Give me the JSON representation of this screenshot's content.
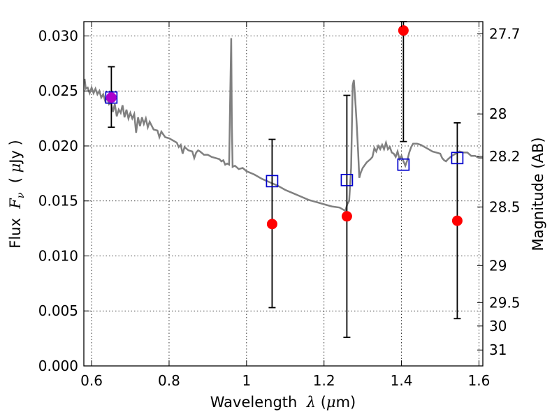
{
  "chart_data": {
    "type": "scatter",
    "xlabel": "Wavelength",
    "xlabel_symbol": "λ",
    "xlabel_unit_prefix": "(",
    "xlabel_unit": "μm)",
    "ylabel": "Flux",
    "ylabel_symbol": "F",
    "ylabel_subscript": "ν",
    "ylabel_unit": "( μJy )",
    "y2label": "Magnitude (AB)",
    "xlim": [
      0.58,
      1.61
    ],
    "ylim": [
      0.0,
      0.0313
    ],
    "grid": true,
    "x_ticks": [
      {
        "value": 0.6,
        "label": "0.6"
      },
      {
        "value": 0.8,
        "label": "0.8"
      },
      {
        "value": 1.0,
        "label": "1"
      },
      {
        "value": 1.2,
        "label": "1.2"
      },
      {
        "value": 1.4,
        "label": "1.4"
      },
      {
        "value": 1.6,
        "label": "1.6"
      }
    ],
    "y_ticks": [
      {
        "value": 0.0,
        "label": "0.000"
      },
      {
        "value": 0.005,
        "label": "0.005"
      },
      {
        "value": 0.01,
        "label": "0.010"
      },
      {
        "value": 0.015,
        "label": "0.015"
      },
      {
        "value": 0.02,
        "label": "0.020"
      },
      {
        "value": 0.025,
        "label": "0.025"
      },
      {
        "value": 0.03,
        "label": "0.030"
      }
    ],
    "y2_ticks": [
      {
        "value": 27.7,
        "label": "27.7"
      },
      {
        "value": 28.0,
        "label": "28"
      },
      {
        "value": 28.2,
        "label": "28.2"
      },
      {
        "value": 28.5,
        "label": "28.5"
      },
      {
        "value": 29.0,
        "label": "29"
      },
      {
        "value": 29.5,
        "label": "29.5"
      },
      {
        "value": 30.0,
        "label": "30"
      },
      {
        "value": 31.0,
        "label": "31"
      }
    ],
    "y2_zero_point": 23.9,
    "series": [
      {
        "kind": "line",
        "color": "#808080",
        "points": [
          [
            0.582,
            0.0261
          ],
          [
            0.585,
            0.0252
          ],
          [
            0.59,
            0.0253
          ],
          [
            0.595,
            0.0248
          ],
          [
            0.6,
            0.0253
          ],
          [
            0.605,
            0.0248
          ],
          [
            0.61,
            0.0252
          ],
          [
            0.615,
            0.0247
          ],
          [
            0.62,
            0.025
          ],
          [
            0.625,
            0.0244
          ],
          [
            0.63,
            0.0247
          ],
          [
            0.635,
            0.0241
          ],
          [
            0.64,
            0.0244
          ],
          [
            0.645,
            0.0238
          ],
          [
            0.65,
            0.024
          ],
          [
            0.655,
            0.0231
          ],
          [
            0.66,
            0.0238
          ],
          [
            0.665,
            0.0227
          ],
          [
            0.67,
            0.0233
          ],
          [
            0.675,
            0.023
          ],
          [
            0.68,
            0.0237
          ],
          [
            0.685,
            0.0226
          ],
          [
            0.69,
            0.0233
          ],
          [
            0.695,
            0.0225
          ],
          [
            0.7,
            0.023
          ],
          [
            0.705,
            0.0225
          ],
          [
            0.71,
            0.0229
          ],
          [
            0.715,
            0.0212
          ],
          [
            0.72,
            0.0226
          ],
          [
            0.725,
            0.0218
          ],
          [
            0.73,
            0.0226
          ],
          [
            0.735,
            0.022
          ],
          [
            0.74,
            0.0225
          ],
          [
            0.745,
            0.0217
          ],
          [
            0.75,
            0.0222
          ],
          [
            0.76,
            0.0215
          ],
          [
            0.77,
            0.0214
          ],
          [
            0.775,
            0.0208
          ],
          [
            0.78,
            0.0213
          ],
          [
            0.79,
            0.0208
          ],
          [
            0.8,
            0.0207
          ],
          [
            0.81,
            0.0205
          ],
          [
            0.82,
            0.0203
          ],
          [
            0.825,
            0.0199
          ],
          [
            0.83,
            0.0201
          ],
          [
            0.835,
            0.0193
          ],
          [
            0.84,
            0.0199
          ],
          [
            0.85,
            0.0196
          ],
          [
            0.86,
            0.0195
          ],
          [
            0.865,
            0.0189
          ],
          [
            0.87,
            0.0194
          ],
          [
            0.875,
            0.0196
          ],
          [
            0.88,
            0.0195
          ],
          [
            0.89,
            0.0192
          ],
          [
            0.9,
            0.0192
          ],
          [
            0.91,
            0.019
          ],
          [
            0.92,
            0.0189
          ],
          [
            0.93,
            0.0188
          ],
          [
            0.935,
            0.0186
          ],
          [
            0.94,
            0.0187
          ],
          [
            0.945,
            0.0183
          ],
          [
            0.95,
            0.0184
          ],
          [
            0.955,
            0.0183
          ],
          [
            0.958,
            0.025
          ],
          [
            0.9605,
            0.0298
          ],
          [
            0.962,
            0.022
          ],
          [
            0.964,
            0.0181
          ],
          [
            0.97,
            0.0182
          ],
          [
            0.98,
            0.0179
          ],
          [
            0.99,
            0.018
          ],
          [
            1.0,
            0.0177
          ],
          [
            1.02,
            0.0174
          ],
          [
            1.04,
            0.017
          ],
          [
            1.06,
            0.0167
          ],
          [
            1.08,
            0.0164
          ],
          [
            1.1,
            0.016
          ],
          [
            1.12,
            0.0157
          ],
          [
            1.14,
            0.0154
          ],
          [
            1.16,
            0.0151
          ],
          [
            1.18,
            0.0149
          ],
          [
            1.2,
            0.0147
          ],
          [
            1.22,
            0.0145
          ],
          [
            1.24,
            0.0144
          ],
          [
            1.25,
            0.0142
          ],
          [
            1.255,
            0.0141
          ],
          [
            1.26,
            0.0147
          ],
          [
            1.265,
            0.015
          ],
          [
            1.27,
            0.018
          ],
          [
            1.274,
            0.0255
          ],
          [
            1.277,
            0.026
          ],
          [
            1.28,
            0.0245
          ],
          [
            1.284,
            0.0222
          ],
          [
            1.288,
            0.0195
          ],
          [
            1.291,
            0.0171
          ],
          [
            1.295,
            0.0176
          ],
          [
            1.3,
            0.018
          ],
          [
            1.31,
            0.0185
          ],
          [
            1.32,
            0.0188
          ],
          [
            1.325,
            0.019
          ],
          [
            1.33,
            0.0198
          ],
          [
            1.335,
            0.0195
          ],
          [
            1.34,
            0.02
          ],
          [
            1.345,
            0.0197
          ],
          [
            1.35,
            0.0201
          ],
          [
            1.355,
            0.0197
          ],
          [
            1.36,
            0.0203
          ],
          [
            1.365,
            0.0197
          ],
          [
            1.37,
            0.0199
          ],
          [
            1.375,
            0.0194
          ],
          [
            1.38,
            0.0193
          ],
          [
            1.385,
            0.019
          ],
          [
            1.39,
            0.0195
          ],
          [
            1.395,
            0.0188
          ],
          [
            1.4,
            0.0191
          ],
          [
            1.405,
            0.0186
          ],
          [
            1.41,
            0.0182
          ],
          [
            1.415,
            0.0187
          ],
          [
            1.42,
            0.0194
          ],
          [
            1.425,
            0.0199
          ],
          [
            1.43,
            0.0202
          ],
          [
            1.44,
            0.0202
          ],
          [
            1.45,
            0.0201
          ],
          [
            1.46,
            0.0199
          ],
          [
            1.47,
            0.0197
          ],
          [
            1.48,
            0.0195
          ],
          [
            1.49,
            0.0194
          ],
          [
            1.5,
            0.0193
          ],
          [
            1.505,
            0.0189
          ],
          [
            1.51,
            0.0187
          ],
          [
            1.515,
            0.0186
          ],
          [
            1.52,
            0.0188
          ],
          [
            1.53,
            0.0191
          ],
          [
            1.54,
            0.0193
          ],
          [
            1.55,
            0.0195
          ],
          [
            1.56,
            0.0194
          ],
          [
            1.57,
            0.0194
          ],
          [
            1.58,
            0.0191
          ],
          [
            1.59,
            0.0191
          ],
          [
            1.6,
            0.0189
          ],
          [
            1.61,
            0.0189
          ]
        ]
      },
      {
        "kind": "squares",
        "color": "#0000cc",
        "points": [
          [
            0.651,
            0.0244
          ],
          [
            1.066,
            0.0168
          ],
          [
            1.259,
            0.0169
          ],
          [
            1.405,
            0.0183
          ],
          [
            1.544,
            0.0189
          ]
        ]
      },
      {
        "kind": "points_with_errors",
        "color": "#ff0000",
        "error_color": "#000000",
        "points": [
          {
            "x": 0.651,
            "y": 0.0244,
            "ylo": 0.0217,
            "yhi": 0.0272,
            "color": "#aa00cc"
          },
          {
            "x": 1.066,
            "y": 0.0129,
            "ylo": 0.0053,
            "yhi": 0.0206
          },
          {
            "x": 1.259,
            "y": 0.0136,
            "ylo": 0.0026,
            "yhi": 0.0246
          },
          {
            "x": 1.405,
            "y": 0.0305,
            "ylo": 0.0204,
            "yhi": 0.0313
          },
          {
            "x": 1.544,
            "y": 0.0132,
            "ylo": 0.0043,
            "yhi": 0.0221
          }
        ]
      }
    ]
  }
}
